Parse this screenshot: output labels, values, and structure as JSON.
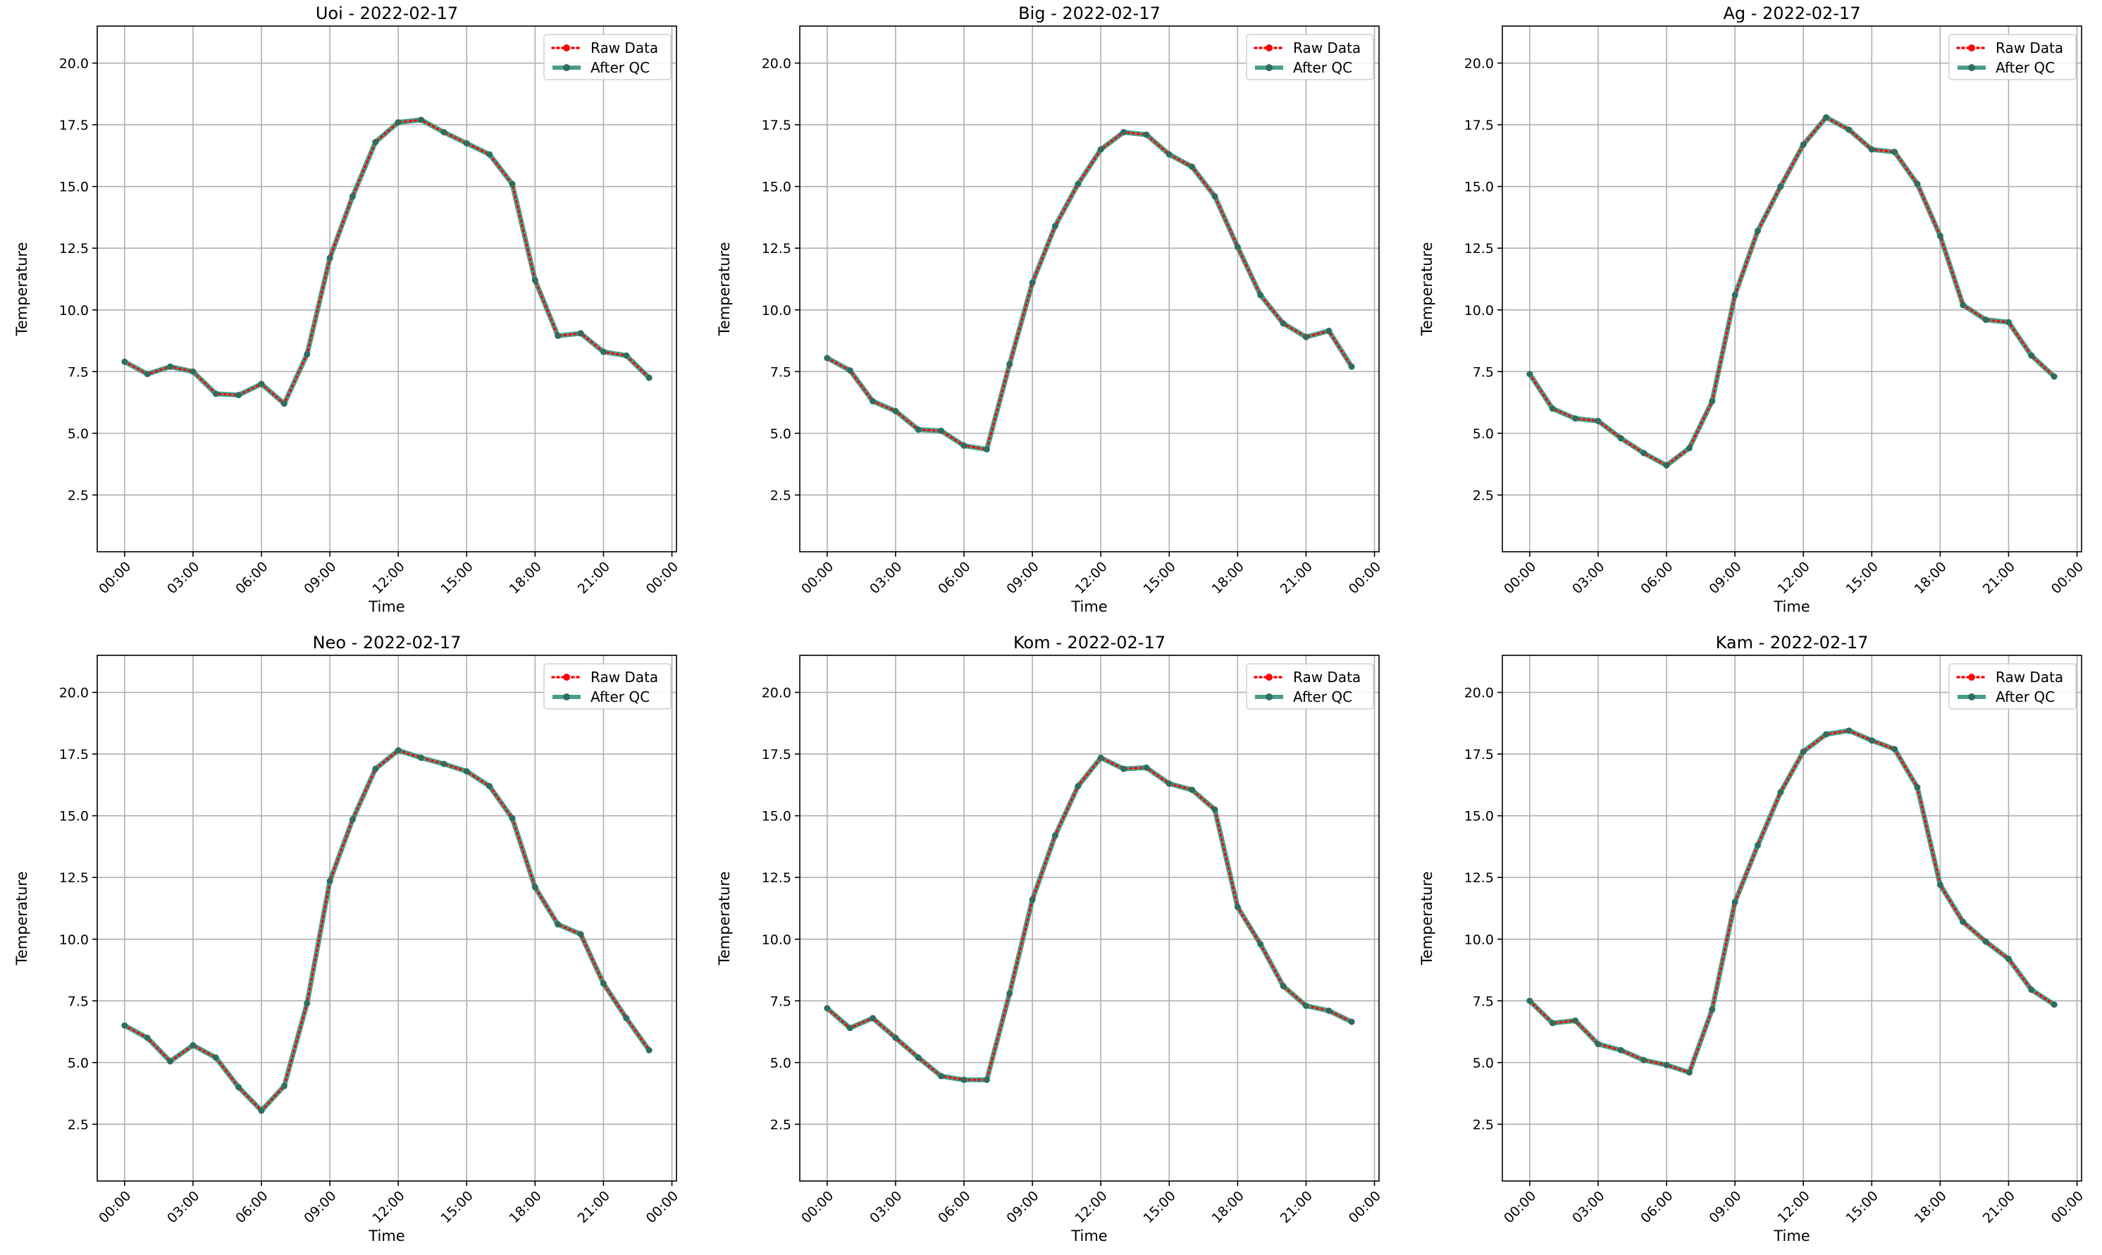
{
  "chart_data": [
    {
      "type": "line",
      "title": "Uoi - 2022-02-17",
      "xlabel": "Time",
      "ylabel": "Temperature",
      "x": [
        "00:00",
        "01:00",
        "02:00",
        "03:00",
        "04:00",
        "05:00",
        "06:00",
        "07:00",
        "08:00",
        "09:00",
        "10:00",
        "11:00",
        "12:00",
        "13:00",
        "14:00",
        "15:00",
        "16:00",
        "17:00",
        "18:00",
        "19:00",
        "20:00",
        "21:00",
        "22:00",
        "23:00"
      ],
      "xticks": [
        "00:00",
        "03:00",
        "06:00",
        "09:00",
        "12:00",
        "15:00",
        "18:00",
        "21:00",
        "00:00"
      ],
      "yticks": [
        2.5,
        5.0,
        7.5,
        10.0,
        12.5,
        15.0,
        17.5,
        20.0
      ],
      "ylim": [
        0.2,
        21.5
      ],
      "grid": true,
      "legend_position": "top-right",
      "series": [
        {
          "name": "Raw Data",
          "color": "#ff0000",
          "values": [
            7.9,
            7.4,
            7.7,
            7.5,
            6.6,
            6.55,
            7.0,
            6.2,
            8.2,
            12.1,
            14.6,
            16.8,
            17.6,
            17.7,
            17.2,
            16.75,
            16.3,
            15.1,
            11.2,
            8.95,
            9.05,
            8.3,
            8.15,
            7.25
          ]
        },
        {
          "name": "After QC",
          "color": "#2a8c74",
          "values": [
            7.9,
            7.4,
            7.7,
            7.5,
            6.6,
            6.55,
            7.0,
            6.2,
            8.2,
            12.1,
            14.6,
            16.8,
            17.6,
            17.7,
            17.2,
            16.75,
            16.3,
            15.1,
            11.2,
            8.95,
            9.05,
            8.3,
            8.15,
            7.25
          ]
        }
      ]
    },
    {
      "type": "line",
      "title": "Big - 2022-02-17",
      "xlabel": "Time",
      "ylabel": "Temperature",
      "x": [
        "00:00",
        "01:00",
        "02:00",
        "03:00",
        "04:00",
        "05:00",
        "06:00",
        "07:00",
        "08:00",
        "09:00",
        "10:00",
        "11:00",
        "12:00",
        "13:00",
        "14:00",
        "15:00",
        "16:00",
        "17:00",
        "18:00",
        "19:00",
        "20:00",
        "21:00",
        "22:00",
        "23:00"
      ],
      "xticks": [
        "00:00",
        "03:00",
        "06:00",
        "09:00",
        "12:00",
        "15:00",
        "18:00",
        "21:00",
        "00:00"
      ],
      "yticks": [
        2.5,
        5.0,
        7.5,
        10.0,
        12.5,
        15.0,
        17.5,
        20.0
      ],
      "ylim": [
        0.2,
        21.5
      ],
      "grid": true,
      "legend_position": "top-right",
      "series": [
        {
          "name": "Raw Data",
          "color": "#ff0000",
          "values": [
            8.05,
            7.55,
            6.3,
            5.9,
            5.15,
            5.1,
            4.5,
            4.35,
            7.8,
            11.1,
            13.4,
            15.1,
            16.5,
            17.2,
            17.1,
            16.3,
            15.8,
            14.6,
            12.55,
            10.6,
            9.45,
            8.9,
            9.15,
            7.7
          ]
        },
        {
          "name": "After QC",
          "color": "#2a8c74",
          "values": [
            8.05,
            7.55,
            6.3,
            5.9,
            5.15,
            5.1,
            4.5,
            4.35,
            7.8,
            11.1,
            13.4,
            15.1,
            16.5,
            17.2,
            17.1,
            16.3,
            15.8,
            14.6,
            12.55,
            10.6,
            9.45,
            8.9,
            9.15,
            7.7
          ]
        }
      ]
    },
    {
      "type": "line",
      "title": "Ag - 2022-02-17",
      "xlabel": "Time",
      "ylabel": "Temperature",
      "x": [
        "00:00",
        "01:00",
        "02:00",
        "03:00",
        "04:00",
        "05:00",
        "06:00",
        "07:00",
        "08:00",
        "09:00",
        "10:00",
        "11:00",
        "12:00",
        "13:00",
        "14:00",
        "15:00",
        "16:00",
        "17:00",
        "18:00",
        "19:00",
        "20:00",
        "21:00",
        "22:00",
        "23:00"
      ],
      "xticks": [
        "00:00",
        "03:00",
        "06:00",
        "09:00",
        "12:00",
        "15:00",
        "18:00",
        "21:00",
        "00:00"
      ],
      "yticks": [
        2.5,
        5.0,
        7.5,
        10.0,
        12.5,
        15.0,
        17.5,
        20.0
      ],
      "ylim": [
        0.2,
        21.5
      ],
      "grid": true,
      "legend_position": "top-right",
      "series": [
        {
          "name": "Raw Data",
          "color": "#ff0000",
          "values": [
            7.4,
            6.0,
            5.6,
            5.5,
            4.8,
            4.2,
            3.7,
            4.4,
            6.3,
            10.6,
            13.2,
            15.0,
            16.7,
            17.8,
            17.3,
            16.5,
            16.4,
            15.1,
            13.0,
            10.2,
            9.6,
            9.5,
            8.15,
            7.3
          ]
        },
        {
          "name": "After QC",
          "color": "#2a8c74",
          "values": [
            7.4,
            6.0,
            5.6,
            5.5,
            4.8,
            4.2,
            3.7,
            4.4,
            6.3,
            10.6,
            13.2,
            15.0,
            16.7,
            17.8,
            17.3,
            16.5,
            16.4,
            15.1,
            13.0,
            10.2,
            9.6,
            9.5,
            8.15,
            7.3
          ]
        }
      ]
    },
    {
      "type": "line",
      "title": "Neo - 2022-02-17",
      "xlabel": "Time",
      "ylabel": "Temperature",
      "x": [
        "00:00",
        "01:00",
        "02:00",
        "03:00",
        "04:00",
        "05:00",
        "06:00",
        "07:00",
        "08:00",
        "09:00",
        "10:00",
        "11:00",
        "12:00",
        "13:00",
        "14:00",
        "15:00",
        "16:00",
        "17:00",
        "18:00",
        "19:00",
        "20:00",
        "21:00",
        "22:00",
        "23:00"
      ],
      "xticks": [
        "00:00",
        "03:00",
        "06:00",
        "09:00",
        "12:00",
        "15:00",
        "18:00",
        "21:00",
        "00:00"
      ],
      "yticks": [
        2.5,
        5.0,
        7.5,
        10.0,
        12.5,
        15.0,
        17.5,
        20.0
      ],
      "ylim": [
        0.2,
        21.5
      ],
      "grid": true,
      "legend_position": "top-right",
      "series": [
        {
          "name": "Raw Data",
          "color": "#ff0000",
          "values": [
            6.5,
            6.0,
            5.05,
            5.7,
            5.2,
            4.0,
            3.05,
            4.05,
            7.4,
            12.35,
            14.85,
            16.9,
            17.65,
            17.35,
            17.1,
            16.8,
            16.2,
            14.9,
            12.1,
            10.6,
            10.2,
            8.2,
            6.8,
            5.5
          ]
        },
        {
          "name": "After QC",
          "color": "#2a8c74",
          "values": [
            6.5,
            6.0,
            5.05,
            5.7,
            5.2,
            4.0,
            3.05,
            4.05,
            7.4,
            12.35,
            14.85,
            16.9,
            17.65,
            17.35,
            17.1,
            16.8,
            16.2,
            14.9,
            12.1,
            10.6,
            10.2,
            8.2,
            6.8,
            5.5
          ]
        }
      ]
    },
    {
      "type": "line",
      "title": "Kom - 2022-02-17",
      "xlabel": "Time",
      "ylabel": "Temperature",
      "x": [
        "00:00",
        "01:00",
        "02:00",
        "03:00",
        "04:00",
        "05:00",
        "06:00",
        "07:00",
        "08:00",
        "09:00",
        "10:00",
        "11:00",
        "12:00",
        "13:00",
        "14:00",
        "15:00",
        "16:00",
        "17:00",
        "18:00",
        "19:00",
        "20:00",
        "21:00",
        "22:00",
        "23:00"
      ],
      "xticks": [
        "00:00",
        "03:00",
        "06:00",
        "09:00",
        "12:00",
        "15:00",
        "18:00",
        "21:00",
        "00:00"
      ],
      "yticks": [
        2.5,
        5.0,
        7.5,
        10.0,
        12.5,
        15.0,
        17.5,
        20.0
      ],
      "ylim": [
        0.2,
        21.5
      ],
      "grid": true,
      "legend_position": "top-right",
      "series": [
        {
          "name": "Raw Data",
          "color": "#ff0000",
          "values": [
            7.2,
            6.4,
            6.8,
            6.0,
            5.2,
            4.45,
            4.3,
            4.3,
            7.8,
            11.6,
            14.2,
            16.2,
            17.35,
            16.9,
            16.95,
            16.3,
            16.05,
            15.25,
            11.3,
            9.8,
            8.1,
            7.3,
            7.1,
            6.65
          ]
        },
        {
          "name": "After QC",
          "color": "#2a8c74",
          "values": [
            7.2,
            6.4,
            6.8,
            6.0,
            5.2,
            4.45,
            4.3,
            4.3,
            7.8,
            11.6,
            14.2,
            16.2,
            17.35,
            16.9,
            16.95,
            16.3,
            16.05,
            15.25,
            11.3,
            9.8,
            8.1,
            7.3,
            7.1,
            6.65
          ]
        }
      ]
    },
    {
      "type": "line",
      "title": "Kam - 2022-02-17",
      "xlabel": "Time",
      "ylabel": "Temperature",
      "x": [
        "00:00",
        "01:00",
        "02:00",
        "03:00",
        "04:00",
        "05:00",
        "06:00",
        "07:00",
        "08:00",
        "09:00",
        "10:00",
        "11:00",
        "12:00",
        "13:00",
        "14:00",
        "15:00",
        "16:00",
        "17:00",
        "18:00",
        "19:00",
        "20:00",
        "21:00",
        "22:00",
        "23:00"
      ],
      "xticks": [
        "00:00",
        "03:00",
        "06:00",
        "09:00",
        "12:00",
        "15:00",
        "18:00",
        "21:00",
        "00:00"
      ],
      "yticks": [
        2.5,
        5.0,
        7.5,
        10.0,
        12.5,
        15.0,
        17.5,
        20.0
      ],
      "ylim": [
        0.2,
        21.5
      ],
      "grid": true,
      "legend_position": "top-right",
      "series": [
        {
          "name": "Raw Data",
          "color": "#ff0000",
          "values": [
            7.5,
            6.6,
            6.7,
            5.75,
            5.5,
            5.1,
            4.9,
            4.6,
            7.15,
            11.5,
            13.8,
            15.95,
            17.6,
            18.3,
            18.45,
            18.05,
            17.7,
            16.15,
            12.2,
            10.7,
            9.9,
            9.2,
            7.95,
            7.35
          ]
        },
        {
          "name": "After QC",
          "color": "#2a8c74",
          "values": [
            7.5,
            6.6,
            6.7,
            5.75,
            5.5,
            5.1,
            4.9,
            4.6,
            7.15,
            11.5,
            13.8,
            15.95,
            17.6,
            18.3,
            18.45,
            18.05,
            17.7,
            16.15,
            12.2,
            10.7,
            9.9,
            9.2,
            7.95,
            7.35
          ]
        }
      ]
    }
  ]
}
